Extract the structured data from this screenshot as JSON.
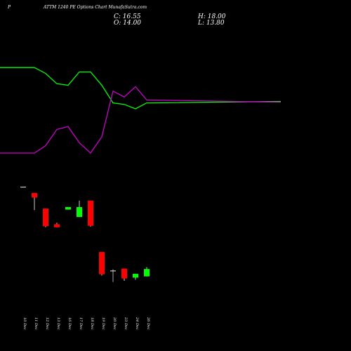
{
  "header": {
    "symbol": "P",
    "title": "ATTM 1240  PE Options  Chart MunafaSutra.com"
  },
  "ohlc": {
    "c_label": "C: 16.55",
    "h_label": "H: 18.00",
    "o_label": "O: 14.00",
    "l_label": "L: 13.80"
  },
  "colors": {
    "background": "#000000",
    "green_line": "#00ff00",
    "magenta_line": "#cc00cc",
    "up_candle": "#00ff00",
    "down_candle": "#ff0000",
    "doji": "#cccccc",
    "text": "#ffffff"
  },
  "chart_data": {
    "type": "candlestick",
    "categories": [
      "10 Dec",
      "11 Dec",
      "12 Dec",
      "13 Dec",
      "16 Dec",
      "17 Dec",
      "18 Dec",
      "19 Dec",
      "20 Dec",
      "23 Dec",
      "24 Dec",
      "26 Dec"
    ],
    "candles": [
      {
        "o": 94.7,
        "h": 94.7,
        "l": 94.7,
        "c": 94.7
      },
      {
        "o": 91.7,
        "h": 91.7,
        "l": 83.6,
        "c": 89.5
      },
      {
        "o": 84.3,
        "h": 84.3,
        "l": 75.4,
        "c": 75.9
      },
      {
        "o": 76.9,
        "h": 77.6,
        "l": 75.4,
        "c": 75.4
      },
      {
        "o": 83.8,
        "h": 85.0,
        "l": 83.8,
        "c": 85.0
      },
      {
        "o": 80.3,
        "h": 88.1,
        "l": 80.3,
        "c": 85.0
      },
      {
        "o": 88.1,
        "h": 88.1,
        "l": 75.7,
        "c": 76.1
      },
      {
        "o": 63.7,
        "h": 63.7,
        "l": 52.5,
        "c": 53.1
      },
      {
        "o": 54.9,
        "h": 55.5,
        "l": 49.4,
        "c": 54.7
      },
      {
        "o": 55.8,
        "h": 55.8,
        "l": 50.0,
        "c": 51.1
      },
      {
        "o": 51.5,
        "h": 53.3,
        "l": 50.5,
        "c": 53.3
      },
      {
        "o": 52.1,
        "h": 56.5,
        "l": 52.1,
        "c": 55.6
      }
    ],
    "series": [
      {
        "color": "green",
        "values": [
          78,
          78,
          74,
          67,
          66,
          75,
          75,
          66,
          54,
          53,
          50,
          54
        ]
      },
      {
        "color": "magenta",
        "values": [
          20,
          20,
          25,
          36,
          38,
          27,
          20,
          31,
          62,
          58,
          65,
          56
        ]
      }
    ],
    "grid": false
  }
}
